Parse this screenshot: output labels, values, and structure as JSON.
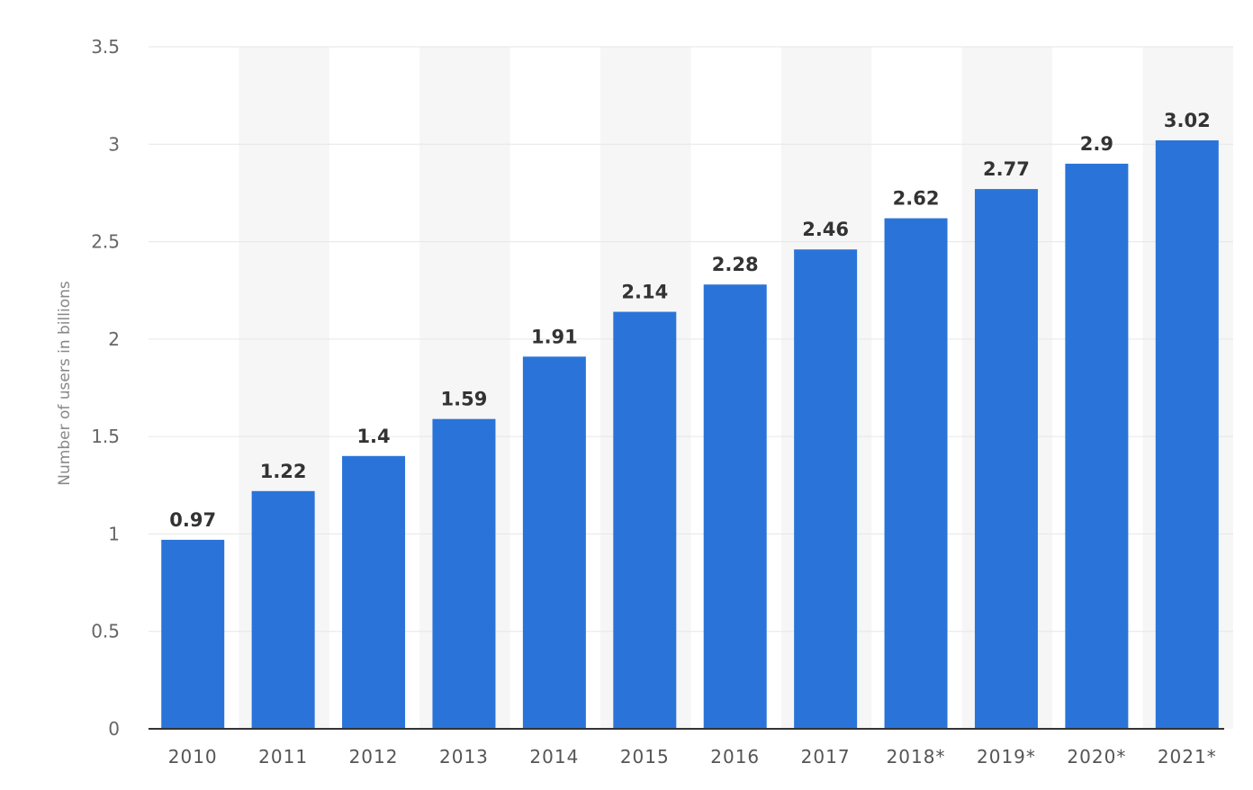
{
  "chart_data": {
    "type": "bar",
    "title": "",
    "xlabel": "",
    "ylabel": "Number of users in billions",
    "categories": [
      "2010",
      "2011",
      "2012",
      "2013",
      "2014",
      "2015",
      "2016",
      "2017",
      "2018*",
      "2019*",
      "2020*",
      "2021*"
    ],
    "values": [
      0.97,
      1.22,
      1.4,
      1.59,
      1.91,
      2.14,
      2.28,
      2.46,
      2.62,
      2.77,
      2.9,
      3.02
    ],
    "data_labels": [
      "0.97",
      "1.22",
      "1.4",
      "1.59",
      "1.91",
      "2.14",
      "2.28",
      "2.46",
      "2.62",
      "2.77",
      "2.9",
      "3.02"
    ],
    "ylim": [
      0,
      3.5
    ],
    "yticks": [
      0,
      0.5,
      1,
      1.5,
      2,
      2.5,
      3,
      3.5
    ],
    "ytick_labels": [
      "0",
      "0.5",
      "1",
      "1.5",
      "2",
      "2.5",
      "3",
      "3.5"
    ],
    "grid": true,
    "colors": {
      "bar": "#2a74d9",
      "band": "#f6f6f6",
      "grid": "#e6e6e6",
      "axis": "#333333"
    }
  }
}
